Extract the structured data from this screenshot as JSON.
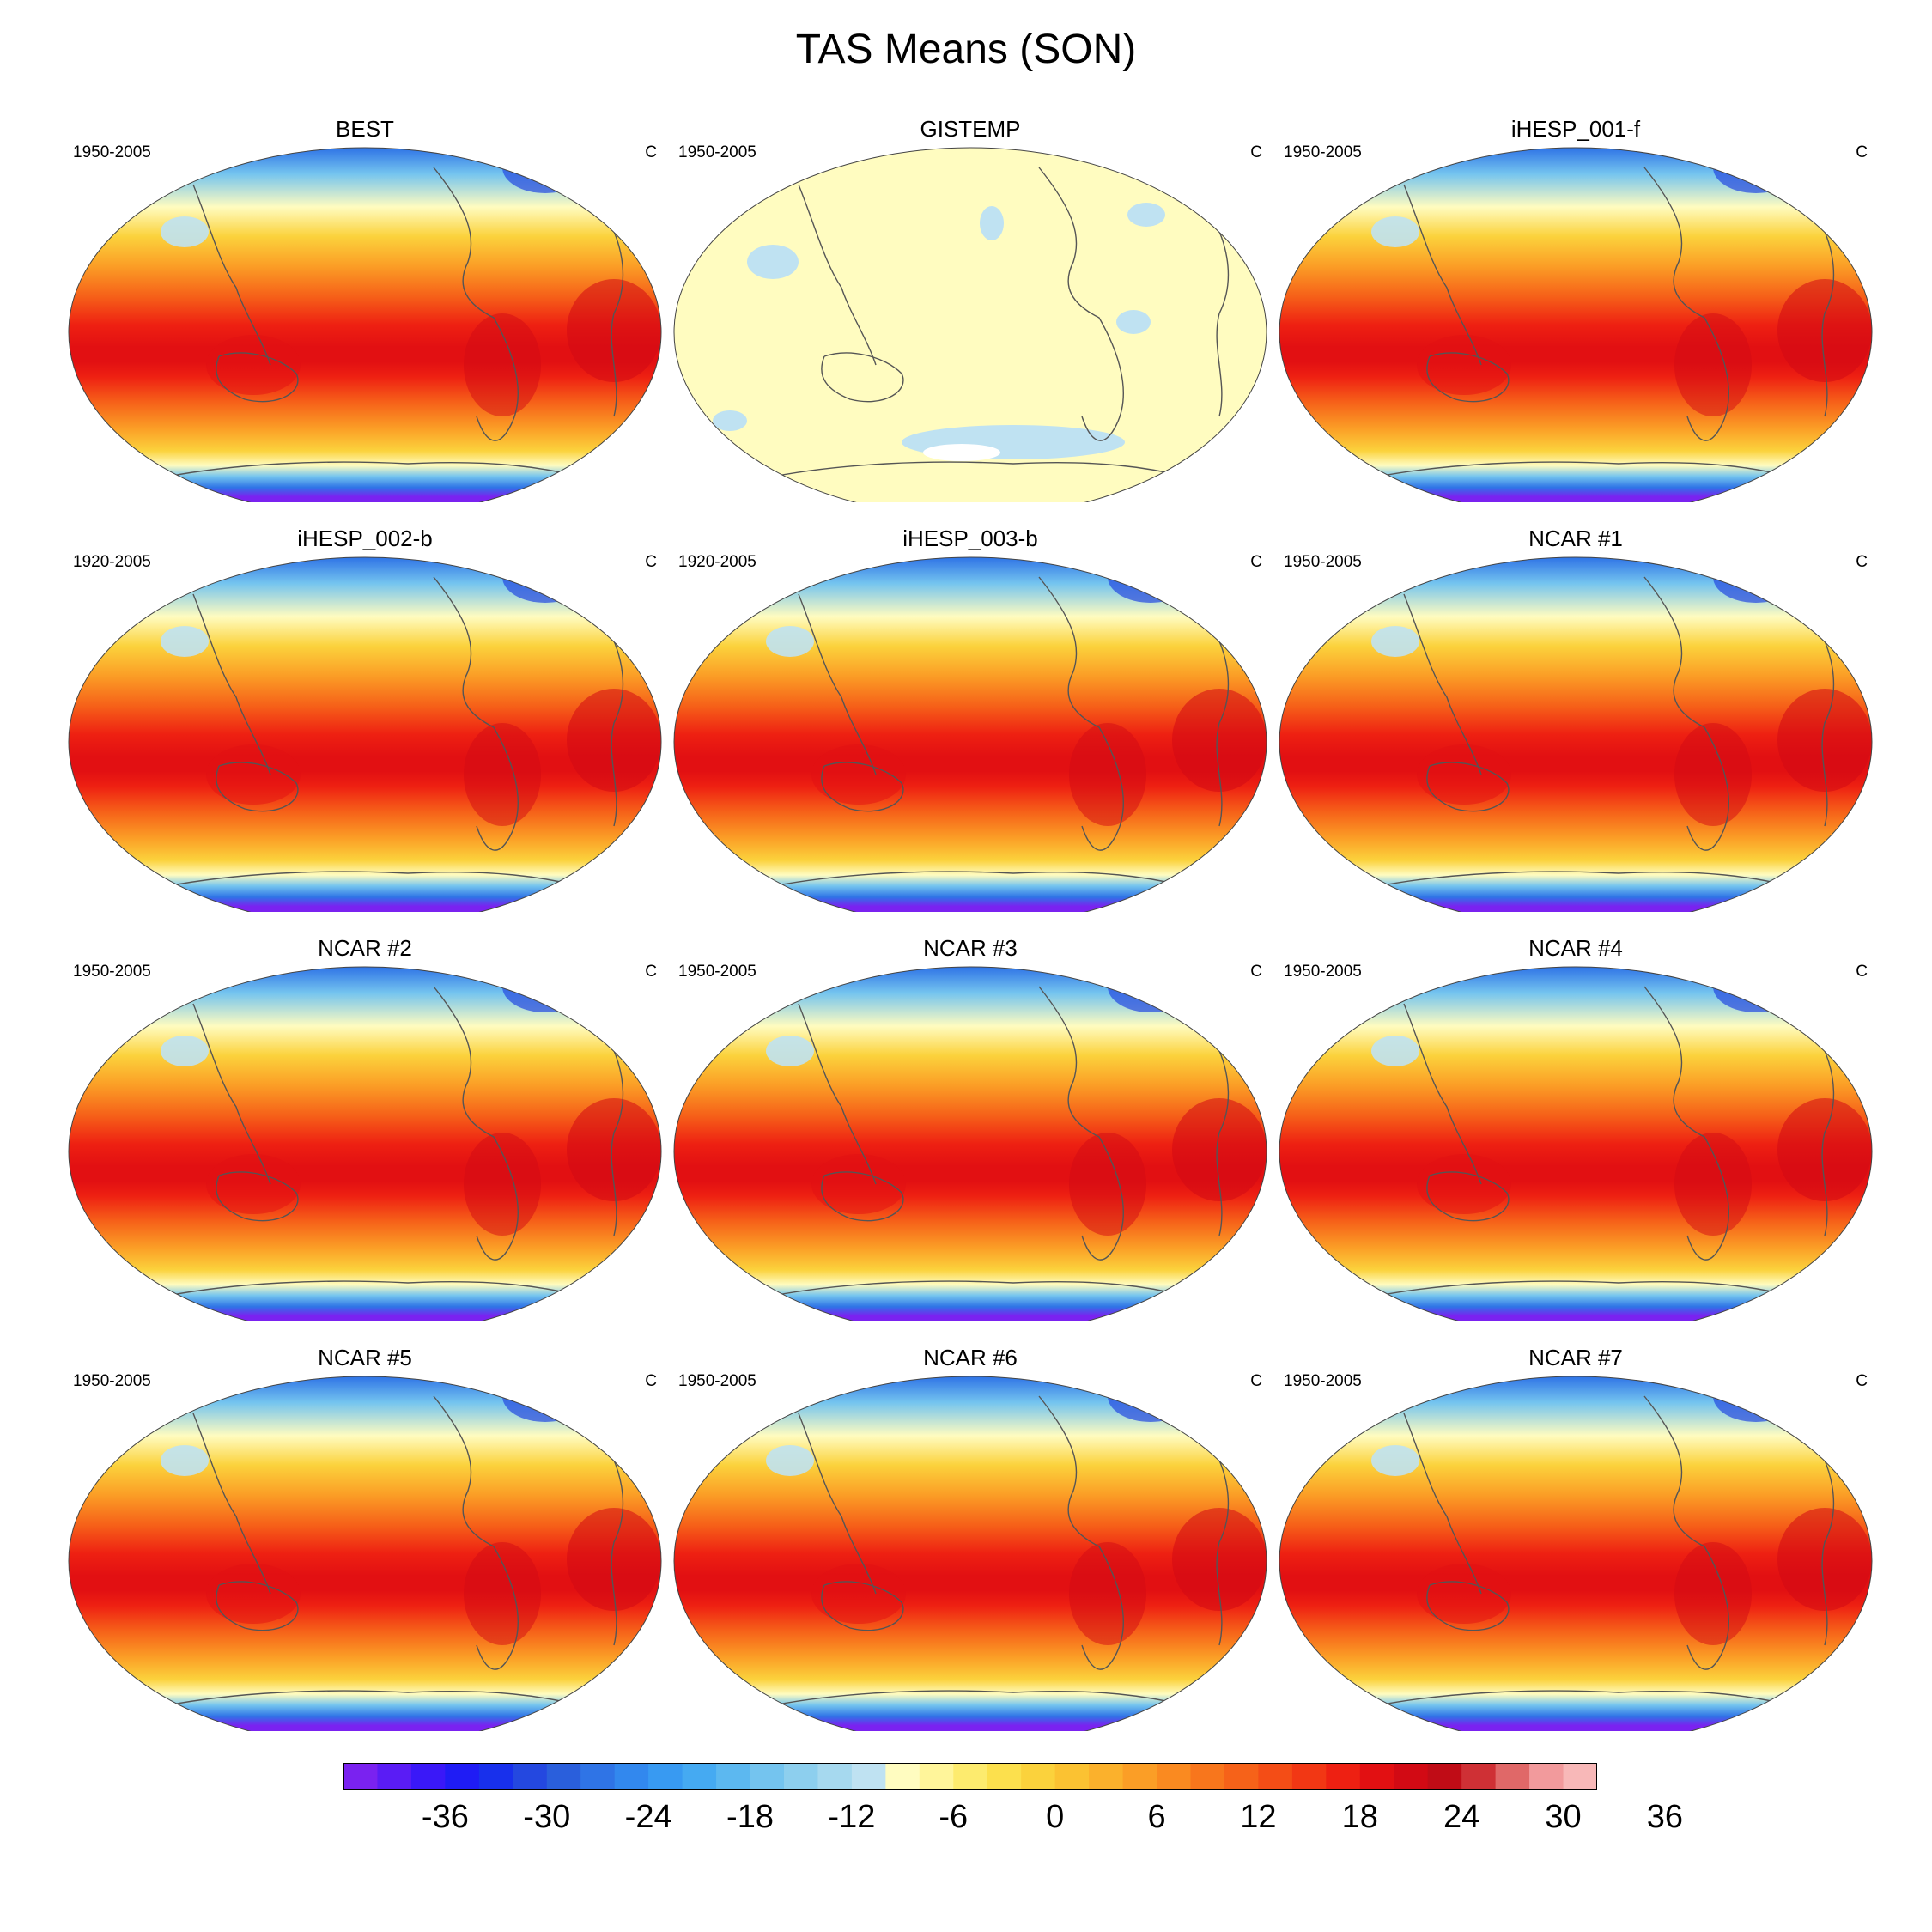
{
  "figure": {
    "title": "TAS Means (SON)"
  },
  "panels": [
    {
      "title": "BEST",
      "period": "1950-2005",
      "units": "C",
      "style": "model"
    },
    {
      "title": "GISTEMP",
      "period": "1950-2005",
      "units": "C",
      "style": "anomaly"
    },
    {
      "title": "iHESP_001-f",
      "period": "1950-2005",
      "units": "C",
      "style": "model"
    },
    {
      "title": "iHESP_002-b",
      "period": "1920-2005",
      "units": "C",
      "style": "model"
    },
    {
      "title": "iHESP_003-b",
      "period": "1920-2005",
      "units": "C",
      "style": "model"
    },
    {
      "title": "NCAR #1",
      "period": "1950-2005",
      "units": "C",
      "style": "model"
    },
    {
      "title": "NCAR #2",
      "period": "1950-2005",
      "units": "C",
      "style": "model"
    },
    {
      "title": "NCAR #3",
      "period": "1950-2005",
      "units": "C",
      "style": "model"
    },
    {
      "title": "NCAR #4",
      "period": "1950-2005",
      "units": "C",
      "style": "model"
    },
    {
      "title": "NCAR #5",
      "period": "1950-2005",
      "units": "C",
      "style": "model"
    },
    {
      "title": "NCAR #6",
      "period": "1950-2005",
      "units": "C",
      "style": "model"
    },
    {
      "title": "NCAR #7",
      "period": "1950-2005",
      "units": "C",
      "style": "model"
    }
  ],
  "colorbar": {
    "labels": [
      "-36",
      "-30",
      "-24",
      "-18",
      "-12",
      "-6",
      "0",
      "6",
      "12",
      "18",
      "24",
      "30",
      "36"
    ],
    "colors": [
      "#7a22f0",
      "#5a1cf5",
      "#3a18f8",
      "#1f1cf5",
      "#1830ec",
      "#2448e0",
      "#2a5fdc",
      "#2f74e6",
      "#3288ee",
      "#389af2",
      "#45aaf2",
      "#5cb8f0",
      "#74c4ef",
      "#8dcfee",
      "#a6d9ef",
      "#bfe2f2",
      "#fffcc0",
      "#fff59a",
      "#fdeb6e",
      "#fce04d",
      "#fbd23c",
      "#fbc232",
      "#fbb12c",
      "#fb9e26",
      "#fa8a20",
      "#f8761c",
      "#f66219",
      "#f44d16",
      "#f23714",
      "#ee2012",
      "#e21012",
      "#d20a14",
      "#c00c16",
      "#cf3035",
      "#e06868",
      "#f29a9c",
      "#f8b8b8"
    ]
  },
  "map_style": {
    "model_gradient": [
      "#7a22f0",
      "#2f74e6",
      "#74c4ef",
      "#fffcc0",
      "#fbd23c",
      "#fb9e26",
      "#f66219",
      "#ee2012",
      "#e21012"
    ],
    "anomaly_fill": "#fffcc0",
    "anomaly_patch": "#bfe2f2",
    "coast_color": "#555555"
  }
}
